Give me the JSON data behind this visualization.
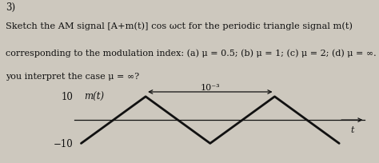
{
  "question_number": "3)",
  "line1": "Sketch the AM signal [A+m(t)] cos ωct for the periodic triangle signal m(t)",
  "line2": "corresponding to the modulation index: (a) μ = 0.5; (b) μ = 1; (c) μ = 2; (d) μ = ∞. How do",
  "line3": "you interpret the case μ = ∞?",
  "amplitude": 10,
  "period": 0.001,
  "background_color": "#cdc8be",
  "line_color": "#111111",
  "text_color": "#111111",
  "axis_color": "#111111",
  "signal_label": "m(t)",
  "y_top_label": "10",
  "y_bot_label": "−10",
  "period_label": "10⁻³",
  "time_label": "t"
}
